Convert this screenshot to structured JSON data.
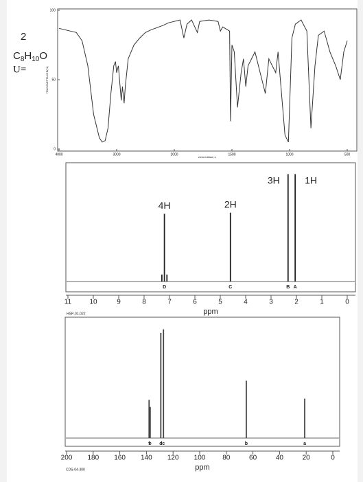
{
  "problem": {
    "number": "2",
    "formula_parts": [
      "C",
      "8",
      "H",
      "10",
      "O"
    ],
    "unsaturation_label": "U="
  },
  "chart_data": [
    {
      "type": "line",
      "xlabel": "WAVENUMBER(-1)",
      "ylabel": "TRANSMITTANCE(%)",
      "xlim": [
        4000,
        500
      ],
      "xticks": [
        4000,
        3000,
        2000,
        1500,
        1000,
        500
      ],
      "ylim": [
        0,
        100
      ],
      "yticks": [
        0,
        50,
        100
      ],
      "color": "#333333",
      "x": [
        4000,
        3900,
        3800,
        3700,
        3600,
        3500,
        3400,
        3300,
        3250,
        3200,
        3150,
        3100,
        3050,
        3020,
        3000,
        2970,
        2950,
        2920,
        2900,
        2870,
        2850,
        2800,
        2700,
        2600,
        2500,
        2400,
        2200,
        2100,
        2000,
        1950,
        1917,
        1890,
        1850,
        1800,
        1780,
        1700,
        1620,
        1600,
        1580,
        1520,
        1512,
        1500,
        1480,
        1452,
        1420,
        1400,
        1380,
        1360,
        1300,
        1270,
        1210,
        1180,
        1120,
        1100,
        1040,
        1010,
        980,
        950,
        900,
        850,
        815,
        780,
        750,
        700,
        650,
        600,
        560,
        530,
        500
      ],
      "values": [
        87,
        86,
        85,
        84,
        78,
        60,
        25,
        8,
        5,
        6,
        15,
        40,
        60,
        63,
        55,
        60,
        50,
        35,
        45,
        33,
        45,
        65,
        75,
        80,
        84,
        86,
        89,
        91,
        92,
        93,
        80,
        90,
        93,
        84,
        92,
        93,
        92,
        85,
        88,
        85,
        20,
        75,
        70,
        30,
        55,
        65,
        45,
        60,
        70,
        60,
        40,
        65,
        55,
        70,
        10,
        5,
        80,
        90,
        93,
        85,
        15,
        60,
        82,
        85,
        70,
        60,
        50,
        70,
        78
      ]
    },
    {
      "type": "nmr",
      "xlabel": "ppm",
      "code": "HSP-01-022",
      "xlim": [
        11,
        0
      ],
      "xticks": [
        11,
        10,
        9,
        8,
        7,
        6,
        5,
        4,
        3,
        2,
        1,
        0
      ],
      "ylim": [
        0,
        100
      ],
      "color": "#222222",
      "x": [
        7.3,
        7.2,
        7.1,
        4.6,
        2.33,
        2.05
      ],
      "values": [
        6,
        58,
        6,
        59,
        92,
        92
      ],
      "peak_labels": [
        null,
        "D",
        null,
        "C",
        "B",
        "A"
      ],
      "integrations": [
        null,
        "4H",
        null,
        "2H",
        "3H",
        "1H"
      ]
    },
    {
      "type": "nmr",
      "xlabel": "ppm",
      "code": "CDS-04-300",
      "xlim": [
        200,
        0
      ],
      "xticks": [
        200,
        180,
        160,
        140,
        120,
        100,
        80,
        60,
        40,
        20,
        0
      ],
      "ylim": [
        0,
        100
      ],
      "color": "#444444",
      "x": [
        138.0,
        137.2,
        129.2,
        127.2,
        65.0,
        21.1
      ],
      "values": [
        32,
        26,
        88,
        91,
        48,
        33
      ],
      "peak_labels": [
        "f",
        "e",
        "d",
        "c",
        "b",
        "a"
      ]
    }
  ]
}
